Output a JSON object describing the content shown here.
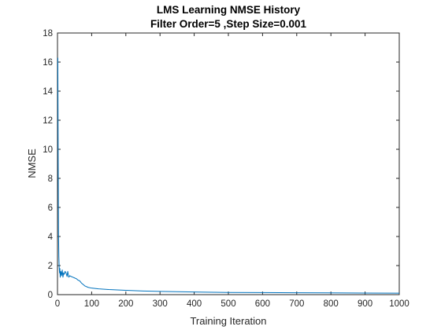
{
  "chart_data": {
    "type": "line",
    "title": "LMS Learning NMSE History",
    "subtitle": "Filter Order=5 ,Step Size=0.001",
    "xlabel": "Training Iteration",
    "ylabel": "NMSE",
    "xlim": [
      0,
      1000
    ],
    "ylim": [
      0,
      18
    ],
    "xticks": [
      0,
      100,
      200,
      300,
      400,
      500,
      600,
      700,
      800,
      900,
      1000
    ],
    "yticks": [
      0,
      2,
      4,
      6,
      8,
      10,
      12,
      14,
      16,
      18
    ],
    "grid": false,
    "series": [
      {
        "color": "#0072BD",
        "x": [
          1,
          2,
          3,
          4,
          5,
          6,
          7,
          8,
          10,
          12,
          14,
          16,
          18,
          20,
          22,
          25,
          28,
          30,
          33,
          36,
          40,
          45,
          50,
          55,
          60,
          65,
          70,
          75,
          80,
          90,
          100,
          120,
          150,
          200,
          250,
          300,
          350,
          400,
          500,
          600,
          700,
          800,
          900,
          1000
        ],
        "y": [
          16.3,
          9.5,
          4.2,
          2.6,
          1.9,
          1.5,
          1.8,
          1.2,
          1.6,
          1.3,
          1.7,
          1.2,
          1.5,
          1.4,
          1.6,
          1.5,
          1.25,
          1.6,
          1.2,
          1.3,
          1.25,
          1.2,
          1.15,
          1.1,
          1.0,
          0.95,
          0.8,
          0.7,
          0.6,
          0.5,
          0.45,
          0.4,
          0.35,
          0.3,
          0.25,
          0.22,
          0.2,
          0.18,
          0.15,
          0.14,
          0.13,
          0.12,
          0.11,
          0.1
        ]
      }
    ]
  }
}
